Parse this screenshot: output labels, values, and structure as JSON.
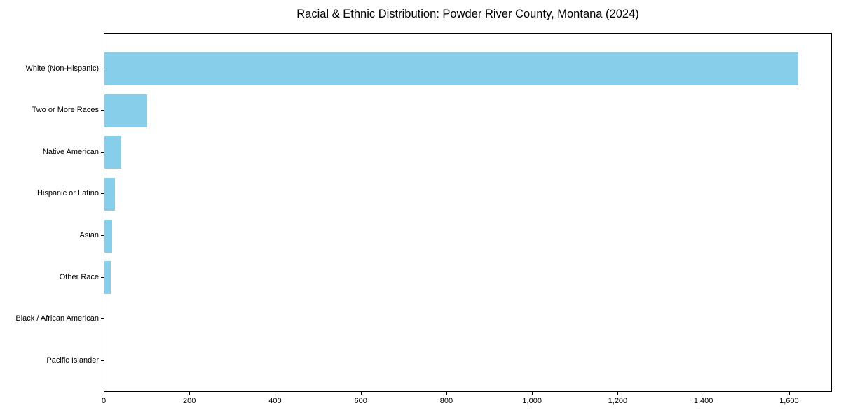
{
  "chart_data": {
    "type": "bar",
    "orientation": "horizontal",
    "title": "Racial & Ethnic Distribution: Powder River County, Montana (2024)",
    "categories": [
      "White (Non-Hispanic)",
      "Two or More Races",
      "Native American",
      "Hispanic or Latino",
      "Asian",
      "Other Race",
      "Black / African American",
      "Pacific Islander"
    ],
    "values": [
      1620,
      100,
      40,
      25,
      18,
      15,
      0,
      0
    ],
    "xlabel": "",
    "ylabel": "",
    "xlim": [
      0,
      1700
    ],
    "xticks": [
      0,
      200,
      400,
      600,
      800,
      1000,
      1200,
      1400,
      1600
    ],
    "xtick_labels": [
      "0",
      "200",
      "400",
      "600",
      "800",
      "1,000",
      "1,200",
      "1,400",
      "1,600"
    ],
    "bar_color": "#87CEEB",
    "grid": false,
    "legend": null,
    "background_color": "#ffffff",
    "axis_color": "#000000"
  }
}
